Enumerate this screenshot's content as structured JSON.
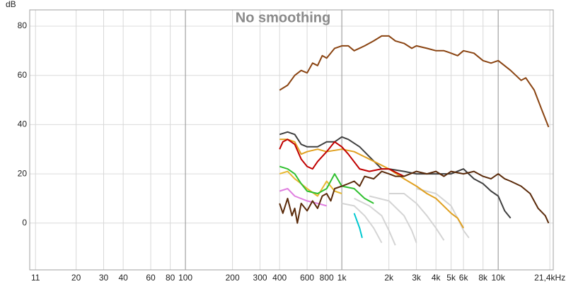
{
  "chart_data": {
    "type": "line",
    "title": "No smoothing",
    "ylabel": "dB",
    "xscale": "log",
    "grid": true,
    "xlim": [
      10.1,
      22500
    ],
    "ylim": [
      -19,
      86.6
    ],
    "yticks": [
      0,
      20,
      40,
      60,
      80
    ],
    "xticks": [
      11,
      20,
      30,
      40,
      60,
      80,
      100,
      200,
      300,
      400,
      600,
      800,
      {
        "value": 1000,
        "label": "1k"
      },
      {
        "value": 2000,
        "label": "2k"
      },
      {
        "value": 3000,
        "label": "3k"
      },
      {
        "value": 4000,
        "label": "4k"
      },
      {
        "value": 5000,
        "label": "5k"
      },
      {
        "value": 6000,
        "label": "6k"
      },
      {
        "value": 8000,
        "label": "8k"
      },
      {
        "value": 10000,
        "label": "10k"
      },
      {
        "value": 21400,
        "label": "21,4kHz"
      }
    ],
    "series": [
      {
        "color": "#d4d4d4",
        "x": [
          1000,
          1200,
          1400,
          1600,
          1800
        ],
        "values": [
          8,
          7,
          3,
          -2,
          -8
        ]
      },
      {
        "color": "#d4d4d4",
        "x": [
          1200,
          1500,
          1800,
          2000,
          2200
        ],
        "values": [
          10,
          7,
          3,
          -3,
          -9
        ]
      },
      {
        "color": "#d4d4d4",
        "x": [
          1500,
          2000,
          2500,
          2800,
          3000
        ],
        "values": [
          11,
          9,
          3,
          -3,
          -8
        ]
      },
      {
        "color": "#d4d4d4",
        "x": [
          2000,
          2500,
          3000,
          3500,
          4000,
          4500
        ],
        "values": [
          12,
          12,
          8,
          3,
          -2,
          -7
        ]
      },
      {
        "color": "#d4d4d4",
        "x": [
          3000,
          4000,
          5000,
          5500,
          6000,
          6500
        ],
        "values": [
          14,
          12,
          7,
          2,
          -3,
          -6
        ]
      },
      {
        "color": "#8a4412",
        "x": [
          400,
          450,
          500,
          550,
          600,
          650,
          700,
          750,
          800,
          900,
          1000,
          1100,
          1200,
          1400,
          1600,
          1800,
          2000,
          2200,
          2500,
          2800,
          3000,
          3500,
          4000,
          4500,
          5000,
          5500,
          6000,
          7000,
          8000,
          9000,
          10000,
          12000,
          14000,
          15000,
          17000,
          19000,
          21000
        ],
        "values": [
          54,
          56,
          60,
          62,
          61,
          65,
          64,
          68,
          67,
          71,
          72,
          72,
          70,
          72,
          74,
          76,
          76,
          74,
          73,
          71,
          72,
          71,
          70,
          70,
          69,
          68,
          70,
          69,
          66,
          65,
          66,
          62,
          58,
          59,
          54,
          46,
          39
        ]
      },
      {
        "color": "#404040",
        "x": [
          400,
          450,
          500,
          550,
          600,
          700,
          800,
          900,
          1000,
          1100,
          1300,
          1500,
          1800,
          2000,
          2500,
          3000,
          4000,
          5000,
          6000,
          7000,
          8000,
          9000,
          10000,
          11000,
          12000
        ],
        "values": [
          36,
          37,
          36,
          32,
          31,
          31,
          33,
          33,
          35,
          34,
          31,
          27,
          22,
          22,
          21,
          20,
          20,
          20,
          22,
          18,
          16,
          13,
          11,
          5,
          2
        ]
      },
      {
        "color": "#e0a020",
        "x": [
          400,
          450,
          500,
          550,
          600,
          700,
          800,
          1000,
          1200,
          1500,
          2000,
          2500,
          3000,
          3500,
          4000,
          5000,
          5500,
          6000
        ],
        "values": [
          34,
          34,
          33,
          28,
          29,
          30,
          29,
          30,
          29,
          26,
          22,
          18,
          15,
          12,
          10,
          4,
          2,
          -2
        ]
      },
      {
        "color": "#c00000",
        "x": [
          400,
          420,
          450,
          500,
          550,
          600,
          650,
          700,
          800,
          900,
          1000,
          1100,
          1300,
          1500,
          1800,
          2000,
          2500
        ],
        "values": [
          30,
          33,
          34,
          32,
          26,
          23,
          22,
          25,
          29,
          33,
          31,
          28,
          22,
          21,
          22,
          22,
          19
        ]
      },
      {
        "color": "#e8b830",
        "x": [
          400,
          450,
          500,
          550,
          600,
          700,
          800,
          900,
          1000
        ],
        "values": [
          20,
          21,
          18,
          16,
          14,
          11,
          17,
          13,
          12
        ]
      },
      {
        "color": "#30c030",
        "x": [
          400,
          450,
          500,
          550,
          600,
          700,
          800,
          900,
          1000,
          1200,
          1400,
          1600
        ],
        "values": [
          23,
          22,
          20,
          16,
          13,
          12,
          14,
          20,
          15,
          14,
          10,
          8
        ]
      },
      {
        "color": "#e080e0",
        "x": [
          400,
          450,
          500,
          600,
          700,
          800
        ],
        "values": [
          13,
          14,
          11,
          9,
          8,
          7
        ]
      },
      {
        "color": "#00c8d0",
        "x": [
          1200,
          1300,
          1350
        ],
        "values": [
          4,
          -2,
          -6
        ]
      },
      {
        "color": "#5a2a0a",
        "x": [
          400,
          420,
          450,
          480,
          500,
          520,
          550,
          600,
          650,
          700,
          750,
          800,
          850,
          900,
          1000,
          1100,
          1200,
          1300,
          1400,
          1600,
          1800,
          2000,
          2200,
          2500,
          3000,
          3500,
          4000,
          4500,
          5000,
          6000,
          7000,
          8000,
          9000,
          10000,
          11000,
          12000,
          14000,
          16000,
          18000,
          20000,
          21000
        ],
        "values": [
          8,
          4,
          10,
          3,
          6,
          0,
          8,
          5,
          9,
          6,
          11,
          12,
          9,
          14,
          15,
          16,
          17,
          15,
          19,
          18,
          21,
          20,
          19,
          19,
          21,
          20,
          21,
          19,
          21,
          20,
          21,
          19,
          18,
          20,
          18,
          17,
          15,
          12,
          6,
          3,
          0
        ]
      }
    ]
  }
}
